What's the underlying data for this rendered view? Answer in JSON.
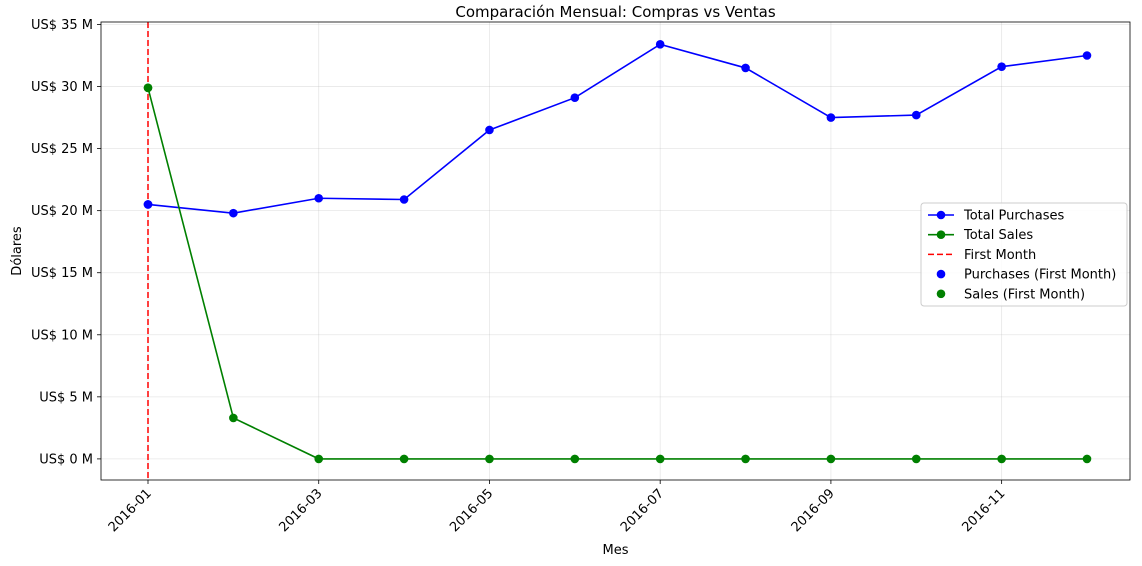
{
  "chart_data": {
    "type": "line",
    "title": "Comparación Mensual: Compras vs Ventas",
    "xlabel": "Mes",
    "ylabel": "Dólares",
    "x": [
      "2016-01",
      "2016-02",
      "2016-03",
      "2016-04",
      "2016-05",
      "2016-06",
      "2016-07",
      "2016-08",
      "2016-09",
      "2016-10",
      "2016-11",
      "2016-12"
    ],
    "x_ticks": [
      "2016-01",
      "2016-03",
      "2016-05",
      "2016-07",
      "2016-09",
      "2016-11"
    ],
    "x_tick_rotation_deg": 45,
    "ylim": [
      -1.7,
      35.2
    ],
    "y_ticks": [
      0,
      5,
      10,
      15,
      20,
      25,
      30,
      35
    ],
    "y_tick_labels": [
      "US$ 0 M",
      "US$ 5 M",
      "US$ 10 M",
      "US$ 15 M",
      "US$ 20 M",
      "US$ 25 M",
      "US$ 30 M",
      "US$ 35 M"
    ],
    "y_unit": "millions of US$",
    "grid": true,
    "legend_position": "center-right",
    "series": [
      {
        "name": "Total Purchases",
        "color": "#0000ff",
        "values": [
          20.5,
          19.8,
          21.0,
          20.9,
          26.5,
          29.1,
          33.4,
          31.5,
          27.5,
          27.7,
          31.6,
          32.5
        ]
      },
      {
        "name": "Total Sales",
        "color": "#008000",
        "values": [
          29.9,
          3.3,
          0.0,
          0.0,
          0.0,
          0.0,
          0.0,
          0.0,
          0.0,
          0.0,
          0.0,
          0.0
        ]
      }
    ],
    "annotations": {
      "first_month_line": {
        "name": "First Month",
        "x": "2016-01",
        "color": "#ff0000",
        "style": "dashed"
      },
      "first_month_points": [
        {
          "name": "Purchases (First Month)",
          "x": "2016-01",
          "y": 20.5,
          "color": "#0000ff"
        },
        {
          "name": "Sales (First Month)",
          "x": "2016-01",
          "y": 29.9,
          "color": "#008000"
        }
      ]
    },
    "legend": [
      {
        "label": "Total Purchases",
        "kind": "line-marker",
        "color": "#0000ff"
      },
      {
        "label": "Total Sales",
        "kind": "line-marker",
        "color": "#008000"
      },
      {
        "label": "First Month",
        "kind": "dashed-line",
        "color": "#ff0000"
      },
      {
        "label": "Purchases (First Month)",
        "kind": "marker",
        "color": "#0000ff"
      },
      {
        "label": "Sales (First Month)",
        "kind": "marker",
        "color": "#008000"
      }
    ]
  }
}
